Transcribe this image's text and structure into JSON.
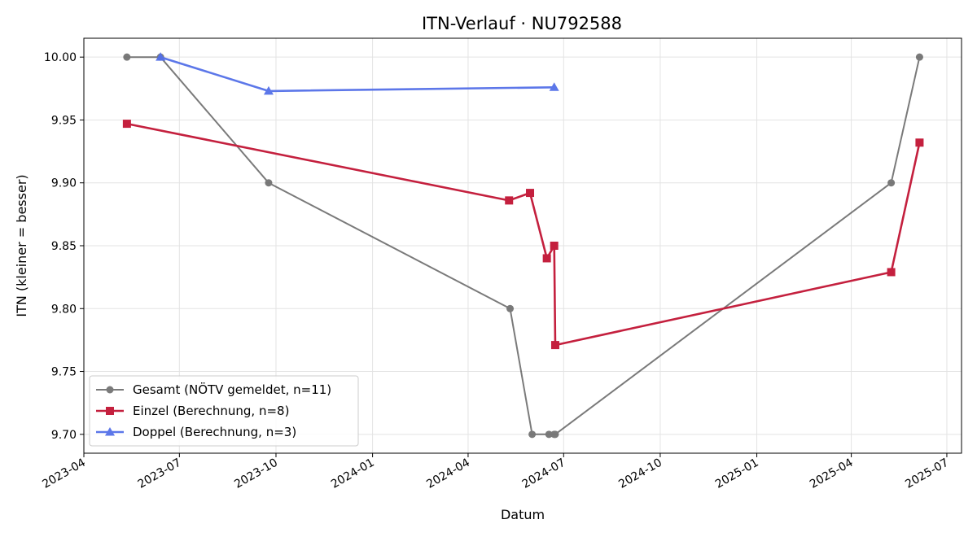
{
  "chart_data": {
    "type": "line",
    "title": "ITN-Verlauf · NU792588",
    "xlabel": "Datum",
    "ylabel": "ITN  (kleiner = besser)",
    "xlim": [
      "2023-04-01",
      "2025-07-15"
    ],
    "ylim": [
      9.685,
      10.015
    ],
    "x_ticks": [
      "2023-04",
      "2023-07",
      "2023-10",
      "2024-01",
      "2024-04",
      "2024-07",
      "2024-10",
      "2025-01",
      "2025-04",
      "2025-07"
    ],
    "y_ticks": [
      "9.70",
      "9.75",
      "9.80",
      "9.85",
      "9.90",
      "9.95",
      "10.00"
    ],
    "grid": true,
    "legend_position": "lower-left",
    "series": [
      {
        "name": "Gesamt (NÖTV gemeldet, n=11)",
        "color": "#555555",
        "marker": "circle",
        "points": [
          {
            "x": "2023-05-12",
            "y": 10.0
          },
          {
            "x": "2023-06-13",
            "y": 10.0
          },
          {
            "x": "2023-09-24",
            "y": 9.9
          },
          {
            "x": "2024-05-11",
            "y": 9.8
          },
          {
            "x": "2024-06-01",
            "y": 9.7
          },
          {
            "x": "2024-06-17",
            "y": 9.7
          },
          {
            "x": "2024-06-22",
            "y": 9.7
          },
          {
            "x": "2024-06-23",
            "y": 9.7
          },
          {
            "x": "2025-05-09",
            "y": 9.9
          },
          {
            "x": "2025-06-05",
            "y": 10.0
          }
        ]
      },
      {
        "name": "Einzel (Berechnung, n=8)",
        "color": "#c4203e",
        "marker": "square",
        "points": [
          {
            "x": "2023-05-12",
            "y": 9.947
          },
          {
            "x": "2024-05-10",
            "y": 9.886
          },
          {
            "x": "2024-05-30",
            "y": 9.892
          },
          {
            "x": "2024-06-15",
            "y": 9.84
          },
          {
            "x": "2024-06-22",
            "y": 9.85
          },
          {
            "x": "2024-06-23",
            "y": 9.771
          },
          {
            "x": "2025-05-09",
            "y": 9.829
          },
          {
            "x": "2025-06-05",
            "y": 9.932
          }
        ]
      },
      {
        "name": "Doppel (Berechnung, n=3)",
        "color": "#5470e8",
        "marker": "triangle",
        "points": [
          {
            "x": "2023-06-13",
            "y": 10.0
          },
          {
            "x": "2023-09-24",
            "y": 9.973
          },
          {
            "x": "2024-06-22",
            "y": 9.976
          }
        ]
      }
    ]
  }
}
